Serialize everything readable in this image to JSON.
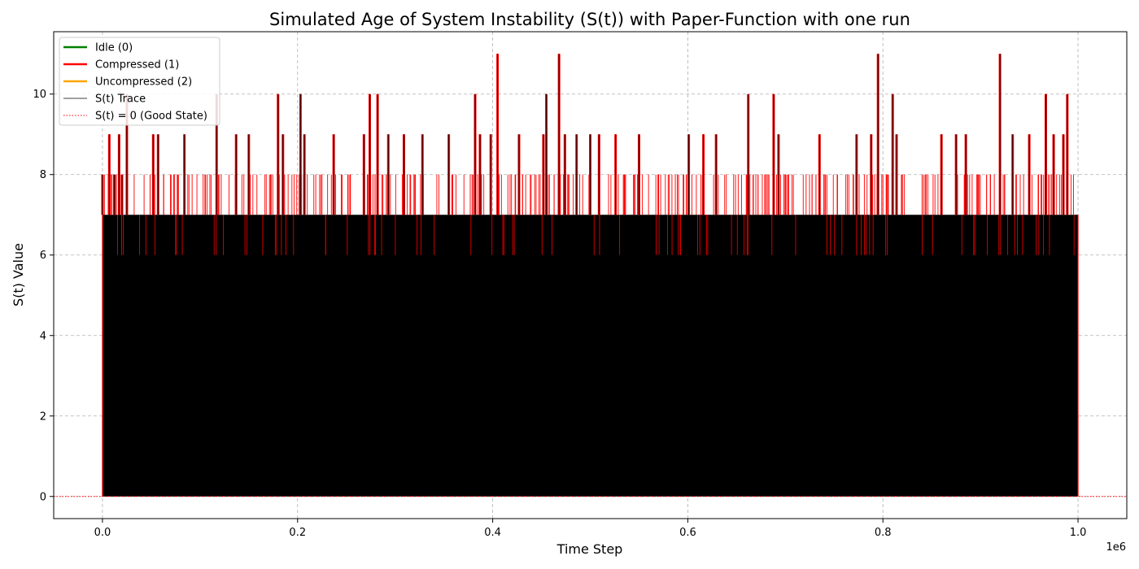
{
  "chart_data": {
    "type": "line",
    "title": "Simulated Age of System Instability (S(t)) with Paper-Function with one run",
    "xlabel": "Time Step",
    "ylabel": "S(t) Value",
    "x_offset_label": "1e6",
    "xlim": [
      -50000,
      1050000
    ],
    "ylim": [
      -0.55,
      11.55
    ],
    "x_ticks": [
      0,
      200000,
      400000,
      600000,
      800000,
      1000000
    ],
    "x_tick_labels": [
      "0.0",
      "0.2",
      "0.4",
      "0.6",
      "0.8",
      "1.0"
    ],
    "y_ticks": [
      0,
      2,
      4,
      6,
      8,
      10
    ],
    "y_tick_labels": [
      "0",
      "2",
      "4",
      "6",
      "8",
      "10"
    ],
    "grid": true,
    "legend_position": "upper left",
    "x_range": [
      0,
      1000000
    ],
    "baseline_value": 0,
    "trace_floor": 0,
    "trace_common_max": 7,
    "colors": {
      "idle": "#008000",
      "compressed": "#ff0000",
      "uncompressed": "#ffa500",
      "trace": "#000000",
      "reference": "#ff0000",
      "grid": "#b0b0b0"
    },
    "legend": [
      {
        "label": "Idle (0)",
        "color": "#008000",
        "style": "solid",
        "width": 2.5
      },
      {
        "label": "Compressed (1)",
        "color": "#ff0000",
        "style": "solid",
        "width": 2.5
      },
      {
        "label": "Uncompressed (2)",
        "color": "#ffa500",
        "style": "solid",
        "width": 2.5
      },
      {
        "label": "S(t) Trace",
        "color": "#000000",
        "style": "solid",
        "width": 0.8
      },
      {
        "label": "S(t) = 0 (Good State)",
        "color": "#ff0000",
        "style": "dotted",
        "width": 1
      }
    ],
    "series": [
      {
        "name": "Compressed (1)",
        "x": [
          0,
          7000,
          12000,
          17000,
          20000,
          25000,
          52000,
          57000,
          84000,
          117000,
          137000,
          150000,
          180000,
          185000,
          203000,
          207000,
          237000,
          268000,
          274000,
          282000,
          293000,
          309000,
          328000,
          355000,
          382000,
          387000,
          398000,
          405000,
          427000,
          452000,
          455000,
          468000,
          474000,
          486000,
          500000,
          509000,
          526000,
          550000,
          601000,
          616000,
          629000,
          662000,
          688000,
          693000,
          735000,
          773000,
          788000,
          795000,
          810000,
          814000,
          860000,
          875000,
          885000,
          920000,
          933000,
          950000,
          967000,
          975000,
          985000,
          989000
        ],
        "values": [
          8,
          9,
          8,
          9,
          8,
          10,
          9,
          9,
          9,
          10,
          9,
          9,
          10,
          9,
          10,
          9,
          9,
          9,
          10,
          10,
          9,
          9,
          9,
          9,
          10,
          9,
          9,
          11,
          9,
          9,
          10,
          11,
          9,
          9,
          9,
          9,
          9,
          9,
          9,
          9,
          9,
          10,
          10,
          9,
          9,
          9,
          9,
          11,
          10,
          9,
          9,
          9,
          9,
          11,
          9,
          9,
          10,
          9,
          9,
          10
        ]
      },
      {
        "name": "S(t) Trace",
        "x": [
          0,
          1000000
        ],
        "values": [
          0,
          7
        ]
      }
    ]
  }
}
